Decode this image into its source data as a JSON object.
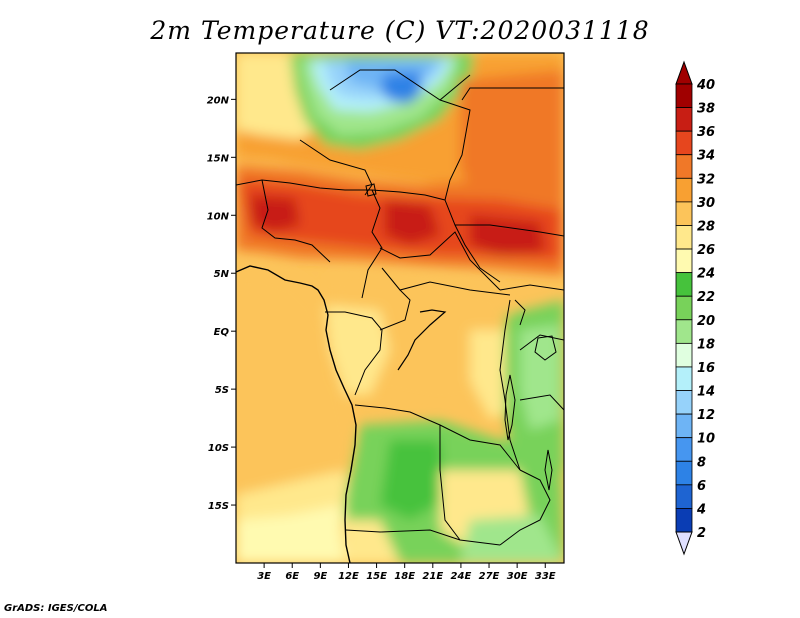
{
  "title": "2m Temperature (C) VT:2020031118",
  "footer": "GrADS: IGES/COLA",
  "map": {
    "lon_range_deg": [
      0,
      35
    ],
    "lat_range_deg": [
      -20,
      24
    ],
    "lon_ticks": [
      {
        "value": 3,
        "label": "3E"
      },
      {
        "value": 6,
        "label": "6E"
      },
      {
        "value": 9,
        "label": "9E"
      },
      {
        "value": 12,
        "label": "12E"
      },
      {
        "value": 15,
        "label": "15E"
      },
      {
        "value": 18,
        "label": "18E"
      },
      {
        "value": 21,
        "label": "21E"
      },
      {
        "value": 24,
        "label": "24E"
      },
      {
        "value": 27,
        "label": "27E"
      },
      {
        "value": 30,
        "label": "30E"
      },
      {
        "value": 33,
        "label": "33E"
      }
    ],
    "lat_ticks": [
      {
        "value": 20,
        "label": "20N"
      },
      {
        "value": 15,
        "label": "15N"
      },
      {
        "value": 10,
        "label": "10N"
      },
      {
        "value": 5,
        "label": "5N"
      },
      {
        "value": 0,
        "label": "EQ"
      },
      {
        "value": -5,
        "label": "5S"
      },
      {
        "value": -10,
        "label": "10S"
      },
      {
        "value": -15,
        "label": "15S"
      }
    ]
  },
  "colorbar": {
    "levels": [
      "2",
      "4",
      "6",
      "8",
      "10",
      "12",
      "14",
      "16",
      "18",
      "20",
      "22",
      "24",
      "26",
      "28",
      "30",
      "32",
      "34",
      "36",
      "38",
      "40"
    ],
    "colors": [
      "#000080",
      "#0a3db4",
      "#1e64d2",
      "#2d82e6",
      "#4696f0",
      "#6eb4f5",
      "#96d2fa",
      "#b4f0fa",
      "#e0ffe0",
      "#a0e68c",
      "#78d25a",
      "#46c23c",
      "#fffab0",
      "#ffe88c",
      "#fcc45a",
      "#f8a032",
      "#f07828",
      "#e6461e",
      "#c81e14",
      "#a00000"
    ],
    "under_color": "#e0e0ff",
    "over_color": "#a00000"
  }
}
